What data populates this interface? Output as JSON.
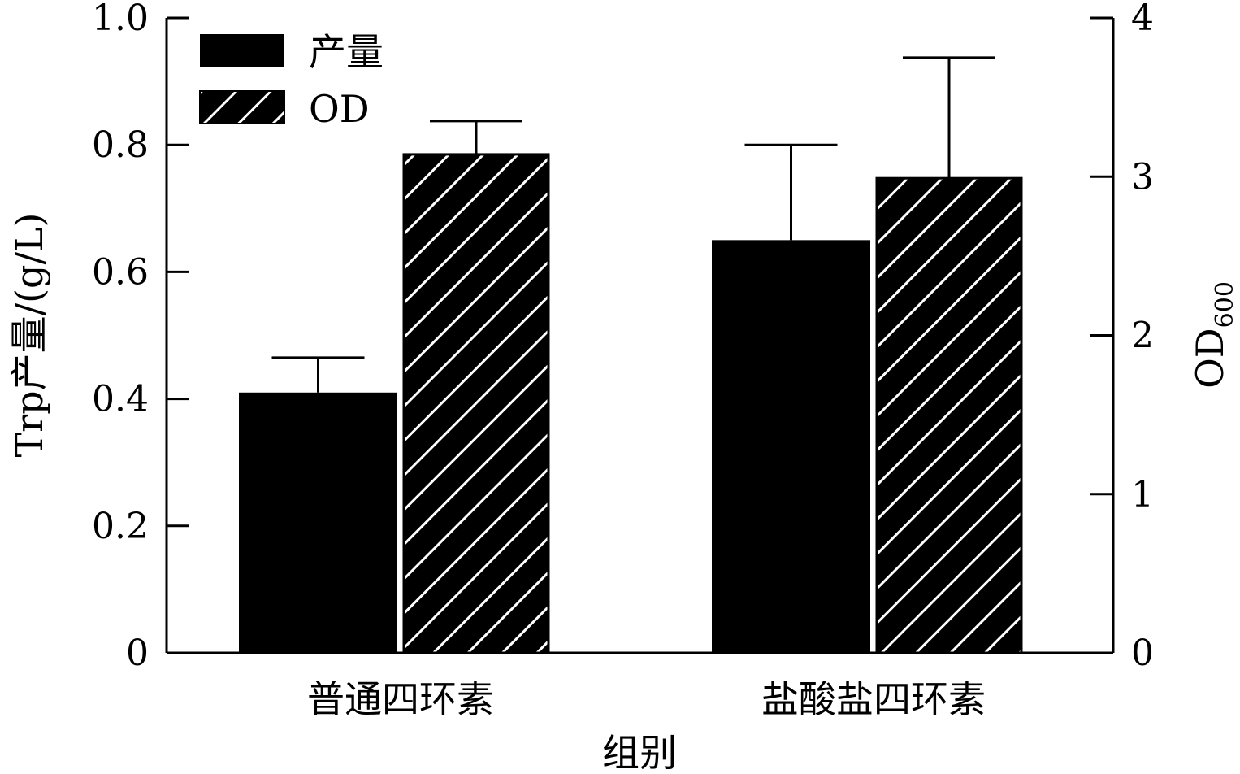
{
  "chart_data": {
    "type": "bar",
    "categories": [
      "普通四环素",
      "盐酸盐四环素"
    ],
    "xlabel": "组别",
    "ylabel": "Trp产量/(g/L)",
    "ylabel_right": {
      "main": "OD",
      "sub": "600"
    },
    "ylim": [
      0,
      1.0
    ],
    "ylim_right": [
      0,
      4
    ],
    "yticks": [
      "0",
      "0.2",
      "0.4",
      "0.6",
      "0.8",
      "1.0"
    ],
    "yticks_right": [
      "0",
      "1",
      "2",
      "3",
      "4"
    ],
    "grid": false,
    "legend_position": "top-left",
    "series": [
      {
        "name": "产量",
        "axis": "left",
        "fill": "solid",
        "color": "#000000",
        "values": [
          0.41,
          0.65
        ],
        "errors": [
          0.055,
          0.15
        ]
      },
      {
        "name": "OD",
        "axis": "right",
        "fill": "hatch",
        "color": "#000000",
        "values": [
          3.14,
          2.99
        ],
        "errors": [
          0.21,
          0.76
        ]
      }
    ]
  }
}
